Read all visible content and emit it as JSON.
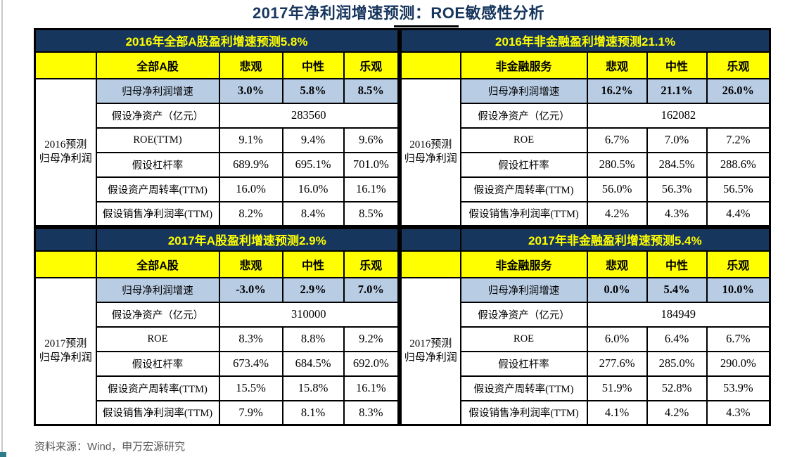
{
  "page_title": "2017年净利润增速预测：ROE敏感性分析",
  "footer": {
    "source_text": "资料来源：Wind，申万宏源研究"
  },
  "colors": {
    "navy_header_bg": "#17365D",
    "header_text_yellow": "#FFFF00",
    "column_row_bg": "#FFFF00",
    "highlight_row_bg": "#B8CCE4",
    "title_text": "#17365D",
    "footer_text": "#595959",
    "border": "#000000",
    "teal_accent": "#2C7C8A"
  },
  "tables": [
    {
      "header": "2016年全部A股盈利增速预测5.8%",
      "row_label_lines": [
        "2016预测",
        "归母净利润"
      ],
      "columns": [
        "全部A股",
        "悲观",
        "中性",
        "乐观"
      ],
      "rows": [
        {
          "label": "归母净利润增速",
          "values": [
            "3.0%",
            "5.8%",
            "8.5%"
          ],
          "highlight": true
        },
        {
          "label": "假设净资产（亿元）",
          "values": [
            "283560"
          ],
          "merged": true
        },
        {
          "label": "ROE(TTM)",
          "values": [
            "9.1%",
            "9.4%",
            "9.6%"
          ]
        },
        {
          "label": "假设杠杆率",
          "values": [
            "689.9%",
            "695.1%",
            "701.0%"
          ]
        },
        {
          "label": "假设资产周转率(TTM)",
          "values": [
            "16.0%",
            "16.0%",
            "16.1%"
          ]
        },
        {
          "label": "假设销售净利润率(TTM)",
          "values": [
            "8.2%",
            "8.4%",
            "8.5%"
          ]
        }
      ]
    },
    {
      "header": "2016年非金融盈利增速预测21.1%",
      "row_label_lines": [
        "2016预测",
        "归母净利润"
      ],
      "columns": [
        "非金融服务",
        "悲观",
        "中性",
        "乐观"
      ],
      "rows": [
        {
          "label": "归母净利润增速",
          "values": [
            "16.2%",
            "21.1%",
            "26.0%"
          ],
          "highlight": true
        },
        {
          "label": "假设净资产（亿元）",
          "values": [
            "162082"
          ],
          "merged": true
        },
        {
          "label": "ROE",
          "values": [
            "6.7%",
            "7.0%",
            "7.2%"
          ]
        },
        {
          "label": "假设杠杆率",
          "values": [
            "280.5%",
            "284.5%",
            "288.6%"
          ]
        },
        {
          "label": "假设资产周转率(TTM)",
          "values": [
            "56.0%",
            "56.3%",
            "56.5%"
          ]
        },
        {
          "label": "假设销售净利润率(TTM)",
          "values": [
            "4.2%",
            "4.3%",
            "4.4%"
          ]
        }
      ]
    },
    {
      "header": "2017年A股盈利增速预测2.9%",
      "row_label_lines": [
        "2017预测",
        "归母净利润"
      ],
      "columns": [
        "全部A股",
        "悲观",
        "中性",
        "乐观"
      ],
      "rows": [
        {
          "label": "归母净利润增速",
          "values": [
            "-3.0%",
            "2.9%",
            "7.0%"
          ],
          "highlight": true
        },
        {
          "label": "假设净资产（亿元）",
          "values": [
            "310000"
          ],
          "merged": true
        },
        {
          "label": "ROE",
          "values": [
            "8.3%",
            "8.8%",
            "9.2%"
          ]
        },
        {
          "label": "假设杠杆率",
          "values": [
            "673.4%",
            "684.5%",
            "692.0%"
          ]
        },
        {
          "label": "假设资产周转率(TTM)",
          "values": [
            "15.5%",
            "15.8%",
            "16.1%"
          ]
        },
        {
          "label": "假设销售净利润率(TTM)",
          "values": [
            "7.9%",
            "8.1%",
            "8.3%"
          ]
        }
      ]
    },
    {
      "header": "2017年非金融盈利增速预测5.4%",
      "row_label_lines": [
        "2017预测",
        "归母净利润"
      ],
      "columns": [
        "非金融服务",
        "悲观",
        "中性",
        "乐观"
      ],
      "rows": [
        {
          "label": "归母净利润增速",
          "values": [
            "0.0%",
            "5.4%",
            "10.0%"
          ],
          "highlight": true
        },
        {
          "label": "假设净资产（亿元）",
          "values": [
            "184949"
          ],
          "merged": true
        },
        {
          "label": "ROE",
          "values": [
            "6.0%",
            "6.4%",
            "6.7%"
          ]
        },
        {
          "label": "假设杠杆率",
          "values": [
            "277.6%",
            "285.0%",
            "290.0%"
          ]
        },
        {
          "label": "假设资产周转率(TTM)",
          "values": [
            "51.9%",
            "52.8%",
            "53.9%"
          ]
        },
        {
          "label": "假设销售净利润率(TTM)",
          "values": [
            "4.1%",
            "4.2%",
            "4.3%"
          ]
        }
      ]
    }
  ]
}
